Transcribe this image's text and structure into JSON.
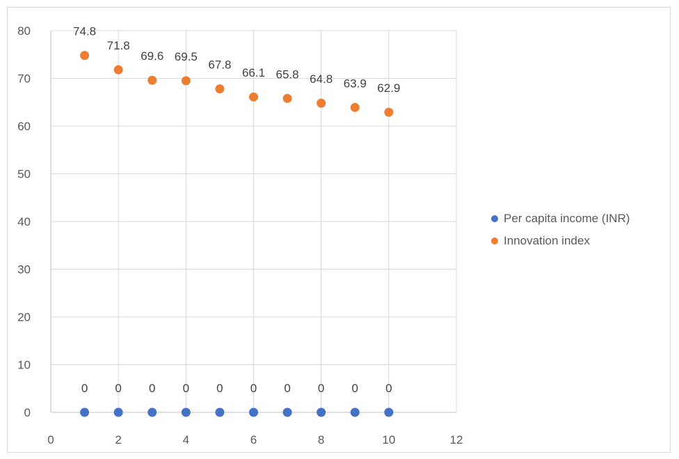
{
  "chart_data": {
    "type": "scatter",
    "title": "",
    "xlabel": "",
    "ylabel": "",
    "xlim": [
      0,
      12
    ],
    "ylim": [
      0,
      80
    ],
    "x_ticks": [
      0,
      2,
      4,
      6,
      8,
      10,
      12
    ],
    "y_ticks": [
      0,
      10,
      20,
      30,
      40,
      50,
      60,
      70,
      80
    ],
    "grid": true,
    "legend_position": "right",
    "x": [
      1,
      2,
      3,
      4,
      5,
      6,
      7,
      8,
      9,
      10
    ],
    "series": [
      {
        "name": "Per capita income (INR)",
        "color": "#4472C4",
        "values": [
          0,
          0,
          0,
          0,
          0,
          0,
          0,
          0,
          0,
          0
        ],
        "labels": [
          "0",
          "0",
          "0",
          "0",
          "0",
          "0",
          "0",
          "0",
          "0",
          "0"
        ]
      },
      {
        "name": "Innovation index",
        "color": "#ED7D31",
        "values": [
          74.8,
          71.8,
          69.6,
          69.5,
          67.8,
          66.1,
          65.8,
          64.8,
          63.9,
          62.9
        ],
        "labels": [
          "74.8",
          "71.8",
          "69.6",
          "69.5",
          "67.8",
          "66.1",
          "65.8",
          "64.8",
          "63.9",
          "62.9"
        ]
      }
    ]
  }
}
